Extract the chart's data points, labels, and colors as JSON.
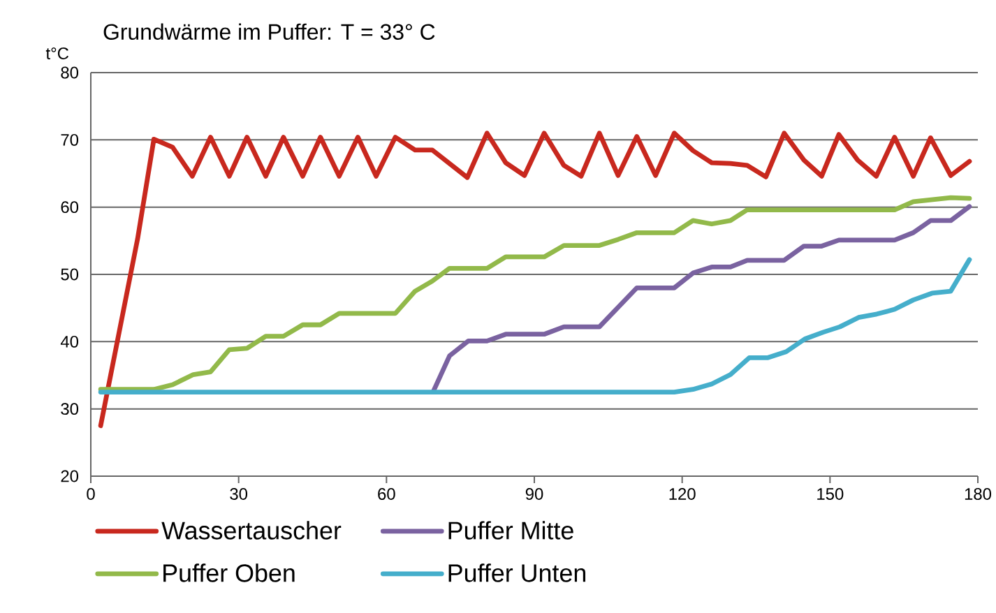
{
  "chart_data": {
    "type": "line",
    "title": "Grundwärme im Puffer: T = 33° C",
    "ylabel": "t°C",
    "xlim": [
      0,
      180
    ],
    "ylim": [
      20,
      80
    ],
    "xticks": [
      0,
      30,
      60,
      90,
      120,
      150,
      180
    ],
    "yticks": [
      20,
      30,
      40,
      50,
      60,
      70,
      80
    ],
    "grid": "y",
    "legend": "bottom",
    "marker": "none",
    "line_style": "solid",
    "series": [
      {
        "name": "Wassertauscher",
        "color": "#c8281e",
        "x": [
          2,
          9.5,
          12.8,
          16.6,
          20.6,
          24.3,
          28.1,
          31.7,
          35.5,
          39.1,
          43,
          46.6,
          50.4,
          54.2,
          57.9,
          61.8,
          65.8,
          69.3,
          76.4,
          80.4,
          84.2,
          88,
          92,
          96,
          99.5,
          103.2,
          107,
          110.8,
          114.6,
          118.4,
          122.2,
          126,
          129.8,
          133.2,
          137,
          140.7,
          144.7,
          148.3,
          151.8,
          155.6,
          159.4,
          163.1,
          166.9,
          170.4,
          174.5,
          178.3
        ],
        "values": [
          27.5,
          55.3,
          70.1,
          68.9,
          64.6,
          70.4,
          64.6,
          70.4,
          64.6,
          70.4,
          64.6,
          70.4,
          64.6,
          70.4,
          64.6,
          70.4,
          68.5,
          68.5,
          64.4,
          71,
          66.6,
          64.7,
          71,
          66.2,
          64.6,
          71,
          64.7,
          70.5,
          64.7,
          71,
          68.4,
          66.6,
          66.5,
          66.2,
          64.5,
          71,
          67,
          64.6,
          70.8,
          67,
          64.6,
          70.4,
          64.6,
          70.3,
          64.7,
          66.8
        ]
      },
      {
        "name": "Puffer Mitte",
        "color": "#7a62a0",
        "x": [
          69.5,
          72.8,
          76.6,
          80.4,
          84.2,
          92,
          96,
          103.2,
          110.8,
          118.4,
          122.2,
          126,
          129.8,
          133.2,
          140.7,
          144.7,
          148.3,
          151.8,
          163.1,
          166.9,
          170.4,
          174.5,
          178.3
        ],
        "values": [
          32.6,
          37.9,
          40.1,
          40.1,
          41.1,
          41.1,
          42.2,
          42.2,
          48,
          48,
          50.2,
          51.1,
          51.1,
          52.1,
          52.1,
          54.2,
          54.2,
          55.1,
          55.1,
          56.2,
          58,
          58,
          60.1
        ]
      },
      {
        "name": "Puffer Oben",
        "color": "#92b94a",
        "x": [
          2,
          12.8,
          16.6,
          20.8,
          24.3,
          28.1,
          31.7,
          35.5,
          39.1,
          43,
          46.6,
          50.4,
          61.8,
          65.8,
          69.3,
          72.8,
          80.4,
          84.2,
          92,
          96,
          103.2,
          107,
          110.8,
          118.4,
          122.2,
          126,
          129.8,
          133.2,
          163.1,
          166.9,
          174.5,
          178.3
        ],
        "values": [
          32.9,
          32.9,
          33.6,
          35.1,
          35.5,
          38.8,
          39,
          40.8,
          40.8,
          42.5,
          42.5,
          44.2,
          44.2,
          47.5,
          49,
          50.9,
          50.9,
          52.6,
          52.6,
          54.3,
          54.3,
          55.2,
          56.2,
          56.2,
          58,
          57.5,
          58,
          59.6,
          59.6,
          60.8,
          61.4,
          61.3
        ]
      },
      {
        "name": "Puffer Unten",
        "color": "#45aecb",
        "x": [
          2,
          118.4,
          122.2,
          126,
          129.8,
          133.6,
          137.3,
          141.1,
          144.9,
          148.6,
          152,
          155.8,
          159.5,
          163.1,
          166.9,
          170.7,
          174.5,
          178.3
        ],
        "values": [
          32.5,
          32.5,
          32.9,
          33.7,
          35.1,
          37.6,
          37.6,
          38.5,
          40.4,
          41.4,
          42.2,
          43.6,
          44.1,
          44.8,
          46.2,
          47.2,
          47.5,
          52.2
        ]
      }
    ]
  }
}
